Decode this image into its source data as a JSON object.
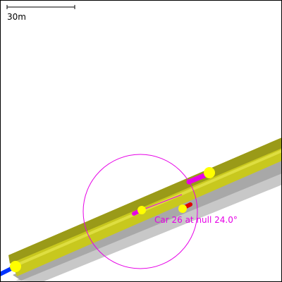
{
  "scale_bar": {
    "label": "30m"
  },
  "car_annotation": {
    "label": "Car 26 at null 24.0°"
  },
  "colors": {
    "background": "#ffffff",
    "road_surface": "#c8c81e",
    "road_dark": "#9a9a18",
    "road_shadow": "#a8a8a8",
    "road_shadow_light": "#c8c8c8",
    "vehicle_marker": "#ffff00",
    "selection": "#e600e6",
    "lane_exit": "#0033ff",
    "brake_light": "#e00000"
  },
  "icons": {
    "vehicle": "yellow-circle",
    "selection_ring": "magenta-circle"
  }
}
